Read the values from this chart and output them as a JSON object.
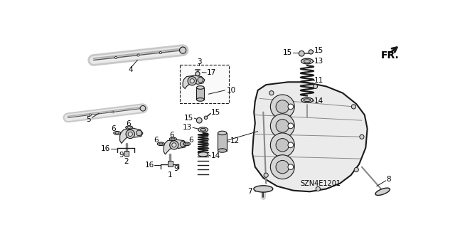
{
  "background_color": "#ffffff",
  "diagram_code": "SZN4E1201",
  "fr_label": "FR.",
  "line_color": "#1a1a1a",
  "text_color": "#000000",
  "font_size": 7.5
}
